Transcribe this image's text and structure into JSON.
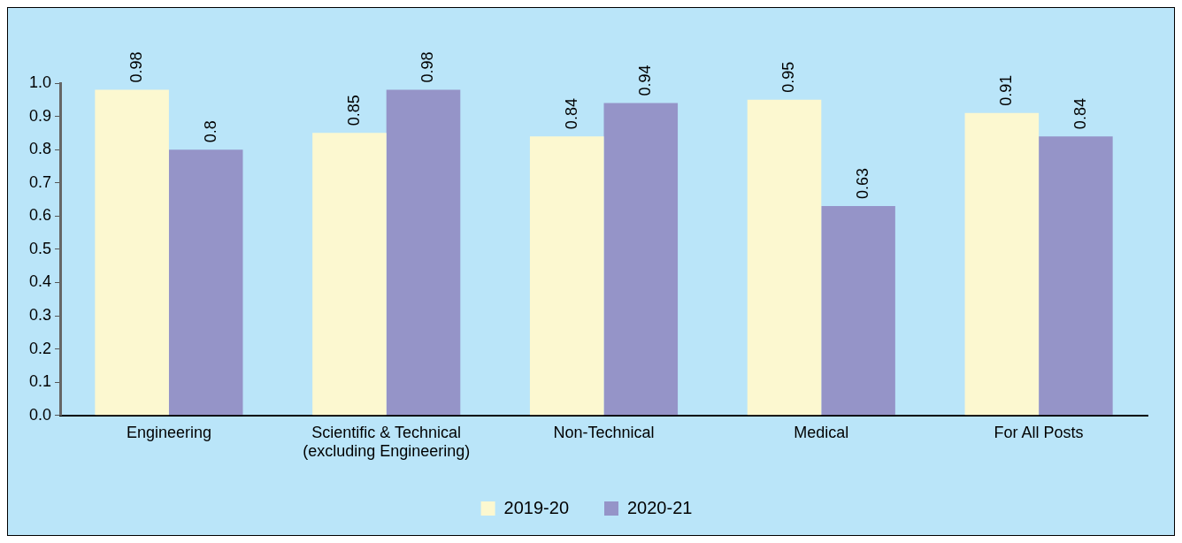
{
  "chart_data": {
    "type": "bar",
    "categories": [
      "Engineering",
      "Scientific & Technical\n(excluding Engineering)",
      "Non-Technical",
      "Medical",
      "For All Posts"
    ],
    "series": [
      {
        "name": "2019-20",
        "color": "#fcf8d0",
        "values": [
          0.98,
          0.85,
          0.84,
          0.95,
          0.91
        ]
      },
      {
        "name": "2020-21",
        "color": "#9594c8",
        "values": [
          0.8,
          0.98,
          0.94,
          0.63,
          0.84
        ]
      }
    ],
    "ylim": [
      0,
      1
    ],
    "yticks": [
      {
        "value": 0,
        "label": "0.0"
      },
      {
        "value": 0.1,
        "label": "0.1"
      },
      {
        "value": 0.2,
        "label": "0.2"
      },
      {
        "value": 0.3,
        "label": "0.3"
      },
      {
        "value": 0.4,
        "label": "0.4"
      },
      {
        "value": 0.5,
        "label": "0.5"
      },
      {
        "value": 0.6,
        "label": "0.6"
      },
      {
        "value": 0.7,
        "label": "0.7"
      },
      {
        "value": 0.8,
        "label": "0.8"
      },
      {
        "value": 0.9,
        "label": "0.9"
      },
      {
        "value": 1,
        "label": "1.0"
      }
    ],
    "grid": false,
    "legend": "bottom",
    "data_labels": true
  }
}
